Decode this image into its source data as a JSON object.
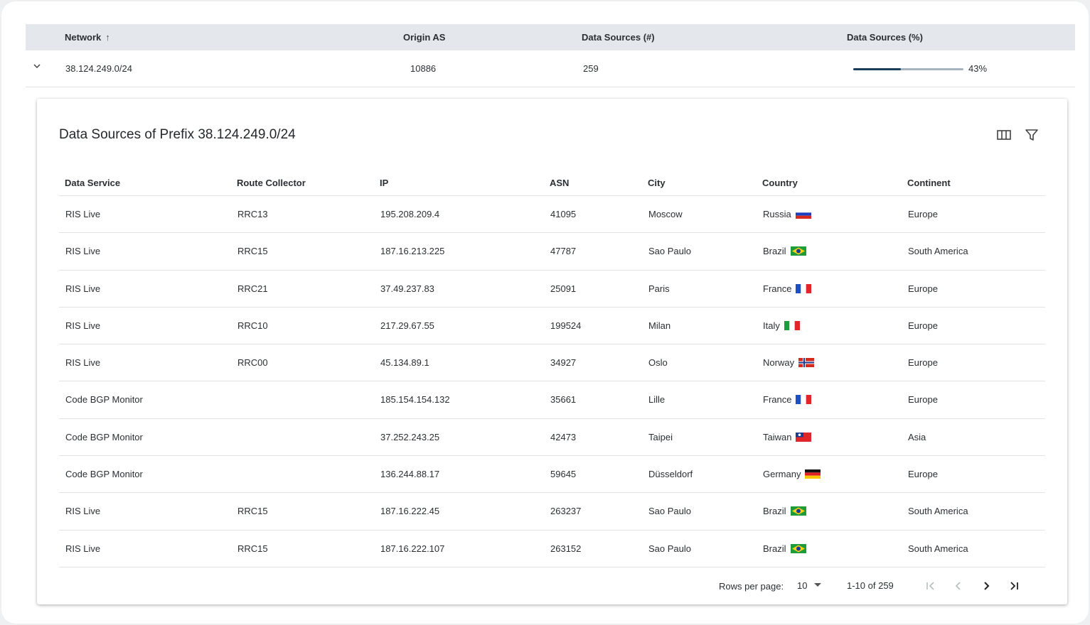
{
  "outer_table": {
    "headers": {
      "network": "Network",
      "origin_as": "Origin AS",
      "ds_count": "Data Sources (#)",
      "ds_pct": "Data Sources (%)"
    },
    "row": {
      "network": "38.124.249.0/24",
      "origin_as": "10886",
      "ds_count": "259",
      "ds_pct_label": "43%",
      "ds_pct_value": 0.43
    }
  },
  "panel": {
    "title": "Data Sources of Prefix 38.124.249.0/24",
    "columns": [
      "Data Service",
      "Route Collector",
      "IP",
      "ASN",
      "City",
      "Country",
      "Continent"
    ],
    "rows": [
      {
        "service": "RIS Live",
        "collector": "RRC13",
        "ip": "195.208.209.4",
        "asn": "41095",
        "city": "Moscow",
        "country": "Russia",
        "flag": "ru",
        "continent": "Europe"
      },
      {
        "service": "RIS Live",
        "collector": "RRC15",
        "ip": "187.16.213.225",
        "asn": "47787",
        "city": "Sao Paulo",
        "country": "Brazil",
        "flag": "br",
        "continent": "South America"
      },
      {
        "service": "RIS Live",
        "collector": "RRC21",
        "ip": "37.49.237.83",
        "asn": "25091",
        "city": "Paris",
        "country": "France",
        "flag": "fr",
        "continent": "Europe"
      },
      {
        "service": "RIS Live",
        "collector": "RRC10",
        "ip": "217.29.67.55",
        "asn": "199524",
        "city": "Milan",
        "country": "Italy",
        "flag": "it",
        "continent": "Europe"
      },
      {
        "service": "RIS Live",
        "collector": "RRC00",
        "ip": "45.134.89.1",
        "asn": "34927",
        "city": "Oslo",
        "country": "Norway",
        "flag": "no",
        "continent": "Europe"
      },
      {
        "service": "Code BGP Monitor",
        "collector": "",
        "ip": "185.154.154.132",
        "asn": "35661",
        "city": "Lille",
        "country": "France",
        "flag": "fr",
        "continent": "Europe"
      },
      {
        "service": "Code BGP Monitor",
        "collector": "",
        "ip": "37.252.243.25",
        "asn": "42473",
        "city": "Taipei",
        "country": "Taiwan",
        "flag": "tw",
        "continent": "Asia"
      },
      {
        "service": "Code BGP Monitor",
        "collector": "",
        "ip": "136.244.88.17",
        "asn": "59645",
        "city": "Düsseldorf",
        "country": "Germany",
        "flag": "de",
        "continent": "Europe"
      },
      {
        "service": "RIS Live",
        "collector": "RRC15",
        "ip": "187.16.222.45",
        "asn": "263237",
        "city": "Sao Paulo",
        "country": "Brazil",
        "flag": "br",
        "continent": "South America"
      },
      {
        "service": "RIS Live",
        "collector": "RRC15",
        "ip": "187.16.222.107",
        "asn": "263152",
        "city": "Sao Paulo",
        "country": "Brazil",
        "flag": "br",
        "continent": "South America"
      }
    ],
    "pagination": {
      "rows_per_page_label": "Rows per page:",
      "rows_per_page": "10",
      "range": "1-10 of 259"
    }
  }
}
